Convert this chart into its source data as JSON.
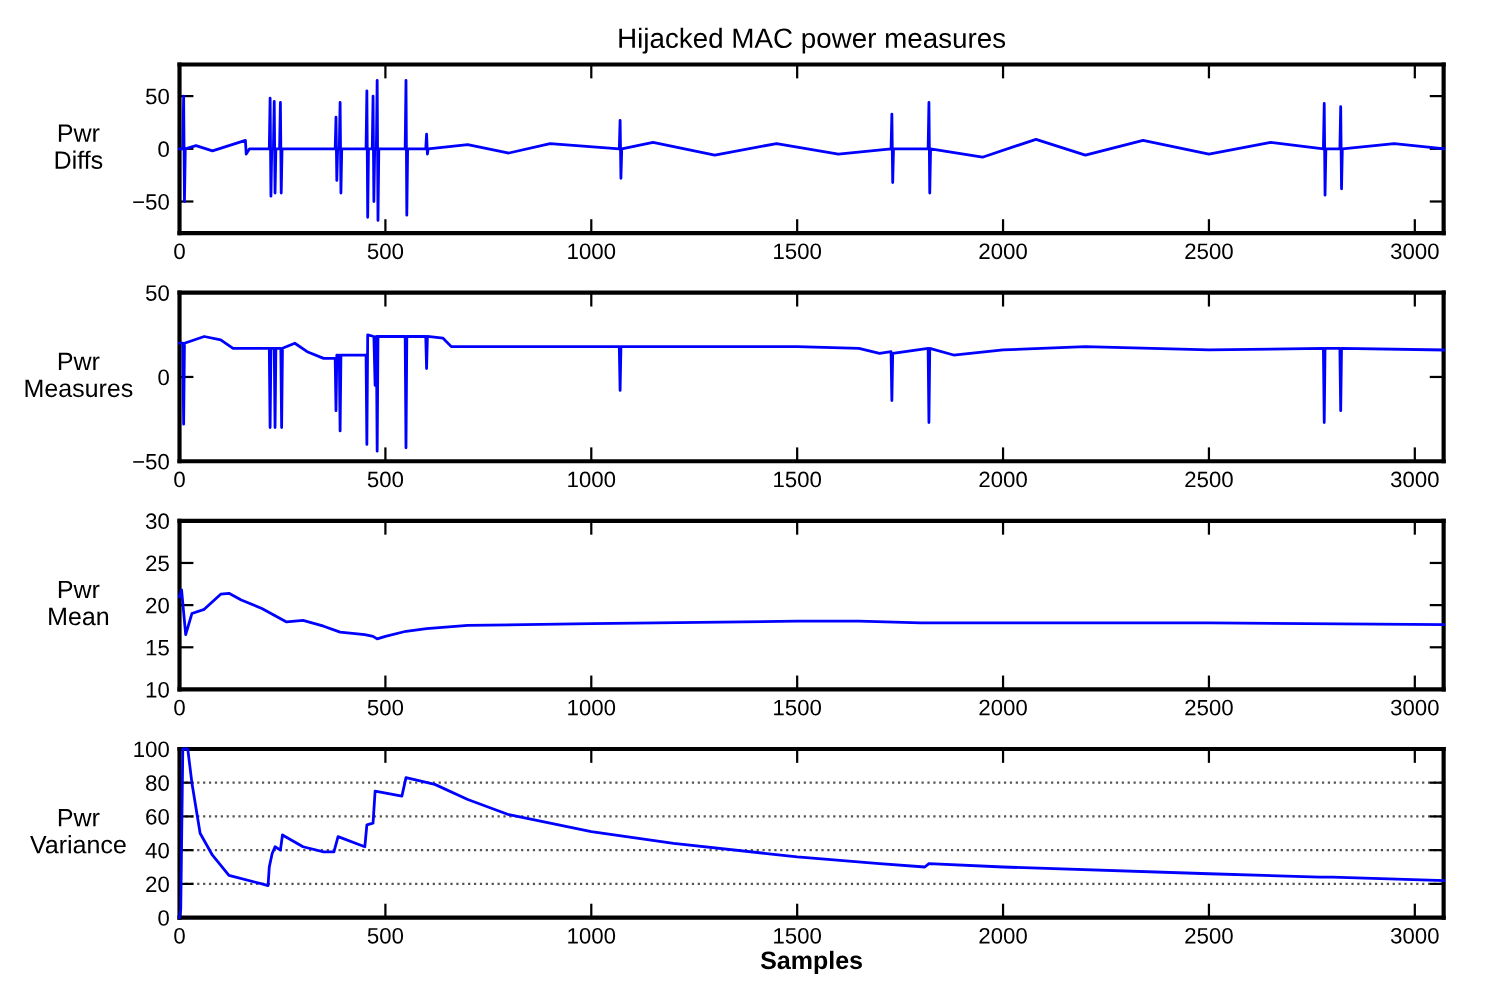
{
  "chart_data": [
    {
      "type": "line",
      "title": "Hijacked MAC power measures",
      "ylabel": "Pwr\nDiffs",
      "xlim": [
        0,
        3070
      ],
      "xticks": [
        0,
        500,
        1000,
        1500,
        2000,
        2500,
        3000
      ],
      "ylim": [
        -80,
        80
      ],
      "yticks": [
        -50,
        0,
        50
      ],
      "grid": false,
      "series": [
        {
          "color": "#0000ff",
          "x": [
            0,
            8,
            10,
            12,
            14,
            40,
            80,
            160,
            162,
            170,
            218,
            220,
            222,
            224,
            228,
            230,
            232,
            234,
            243,
            245,
            247,
            249,
            300,
            378,
            380,
            382,
            384,
            388,
            390,
            392,
            394,
            453,
            455,
            457,
            459,
            468,
            470,
            472,
            474,
            478,
            480,
            482,
            484,
            548,
            550,
            552,
            554,
            598,
            600,
            602,
            604,
            700,
            800,
            900,
            1068,
            1070,
            1072,
            1074,
            1150,
            1300,
            1450,
            1600,
            1728,
            1730,
            1732,
            1734,
            1818,
            1820,
            1822,
            1824,
            1950,
            2080,
            2200,
            2340,
            2500,
            2650,
            2778,
            2780,
            2782,
            2784,
            2818,
            2820,
            2822,
            2824,
            2950,
            3070
          ],
          "values": [
            0,
            0,
            50,
            -50,
            0,
            3,
            -2,
            8,
            -5,
            0,
            0,
            48,
            -45,
            0,
            0,
            45,
            -42,
            0,
            0,
            44,
            -42,
            0,
            0,
            0,
            30,
            -30,
            0,
            0,
            44,
            -42,
            0,
            0,
            55,
            -65,
            0,
            0,
            50,
            -50,
            0,
            0,
            65,
            -68,
            0,
            0,
            65,
            -63,
            0,
            0,
            14,
            -5,
            0,
            4,
            -4,
            5,
            0,
            27,
            -28,
            0,
            6,
            -6,
            5,
            -5,
            0,
            33,
            -32,
            0,
            0,
            44,
            -42,
            0,
            -8,
            9,
            -6,
            8,
            -5,
            6,
            0,
            43,
            -44,
            0,
            0,
            40,
            -38,
            0,
            5,
            0
          ]
        }
      ]
    },
    {
      "type": "line",
      "ylabel": "Pwr\nMeasures",
      "xlim": [
        0,
        3070
      ],
      "xticks": [
        0,
        500,
        1000,
        1500,
        2000,
        2500,
        3000
      ],
      "ylim": [
        -50,
        50
      ],
      "yticks": [
        -50,
        0,
        50
      ],
      "grid": false,
      "series": [
        {
          "color": "#0000ff",
          "x": [
            0,
            8,
            10,
            12,
            60,
            100,
            130,
            210,
            218,
            220,
            222,
            230,
            232,
            234,
            246,
            248,
            250,
            280,
            310,
            350,
            378,
            380,
            382,
            388,
            390,
            392,
            450,
            453,
            455,
            457,
            472,
            475,
            478,
            480,
            482,
            548,
            550,
            552,
            598,
            600,
            602,
            640,
            660,
            1068,
            1070,
            1072,
            1500,
            1650,
            1700,
            1728,
            1730,
            1732,
            1818,
            1820,
            1822,
            1880,
            2000,
            2200,
            2500,
            2778,
            2780,
            2782,
            2818,
            2820,
            2822,
            3070
          ],
          "values": [
            20,
            20,
            -28,
            20,
            24,
            22,
            17,
            17,
            17,
            -30,
            17,
            17,
            -30,
            17,
            17,
            -30,
            17,
            20,
            15,
            11,
            11,
            -20,
            13,
            13,
            -32,
            13,
            13,
            13,
            -40,
            25,
            24,
            -5,
            24,
            -44,
            24,
            24,
            -42,
            24,
            24,
            5,
            24,
            23,
            18,
            18,
            -8,
            18,
            18,
            17,
            14,
            15,
            -14,
            14,
            17,
            -27,
            17,
            13,
            16,
            18,
            16,
            17,
            -27,
            17,
            17,
            -20,
            17,
            16
          ]
        }
      ]
    },
    {
      "type": "line",
      "ylabel": "Pwr\nMean",
      "xlim": [
        0,
        3070
      ],
      "xticks": [
        0,
        500,
        1000,
        1500,
        2000,
        2500,
        3000
      ],
      "ylim": [
        10,
        30
      ],
      "yticks": [
        10,
        15,
        20,
        25,
        30
      ],
      "grid": false,
      "series": [
        {
          "color": "#0000ff",
          "x": [
            0,
            5,
            15,
            30,
            60,
            100,
            120,
            150,
            200,
            230,
            260,
            300,
            350,
            390,
            450,
            470,
            480,
            500,
            550,
            600,
            700,
            1000,
            1500,
            1650,
            1800,
            2500,
            3070
          ],
          "values": [
            21,
            21.8,
            16.5,
            19,
            19.5,
            21.3,
            21.4,
            20.6,
            19.6,
            18.8,
            18,
            18.2,
            17.5,
            16.8,
            16.5,
            16.3,
            16,
            16.3,
            16.9,
            17.2,
            17.6,
            17.8,
            18.1,
            18.1,
            17.9,
            17.9,
            17.7
          ]
        }
      ]
    },
    {
      "type": "line",
      "ylabel": "Pwr\nVariance",
      "xlabel": "Samples",
      "xlim": [
        0,
        3070
      ],
      "xticks": [
        0,
        500,
        1000,
        1500,
        2000,
        2500,
        3000
      ],
      "ylim": [
        0,
        100
      ],
      "yticks": [
        0,
        20,
        40,
        60,
        80,
        100
      ],
      "grid": "y",
      "series": [
        {
          "color": "#0000ff",
          "x": [
            0,
            3,
            8,
            20,
            30,
            50,
            80,
            120,
            200,
            215,
            218,
            225,
            232,
            245,
            250,
            300,
            350,
            375,
            385,
            450,
            455,
            470,
            475,
            540,
            550,
            620,
            700,
            800,
            1000,
            1200,
            1500,
            1700,
            1810,
            1820,
            2000,
            2500,
            2770,
            2800,
            3070
          ],
          "values": [
            0,
            5,
            100,
            100,
            80,
            50,
            37,
            25,
            20,
            19,
            30,
            38,
            42,
            40,
            49,
            42,
            39,
            39,
            48,
            42,
            55,
            56,
            75,
            72,
            83,
            79,
            70,
            61,
            51,
            44,
            36,
            32,
            30,
            32,
            30,
            26,
            24,
            24,
            22
          ]
        }
      ]
    }
  ]
}
